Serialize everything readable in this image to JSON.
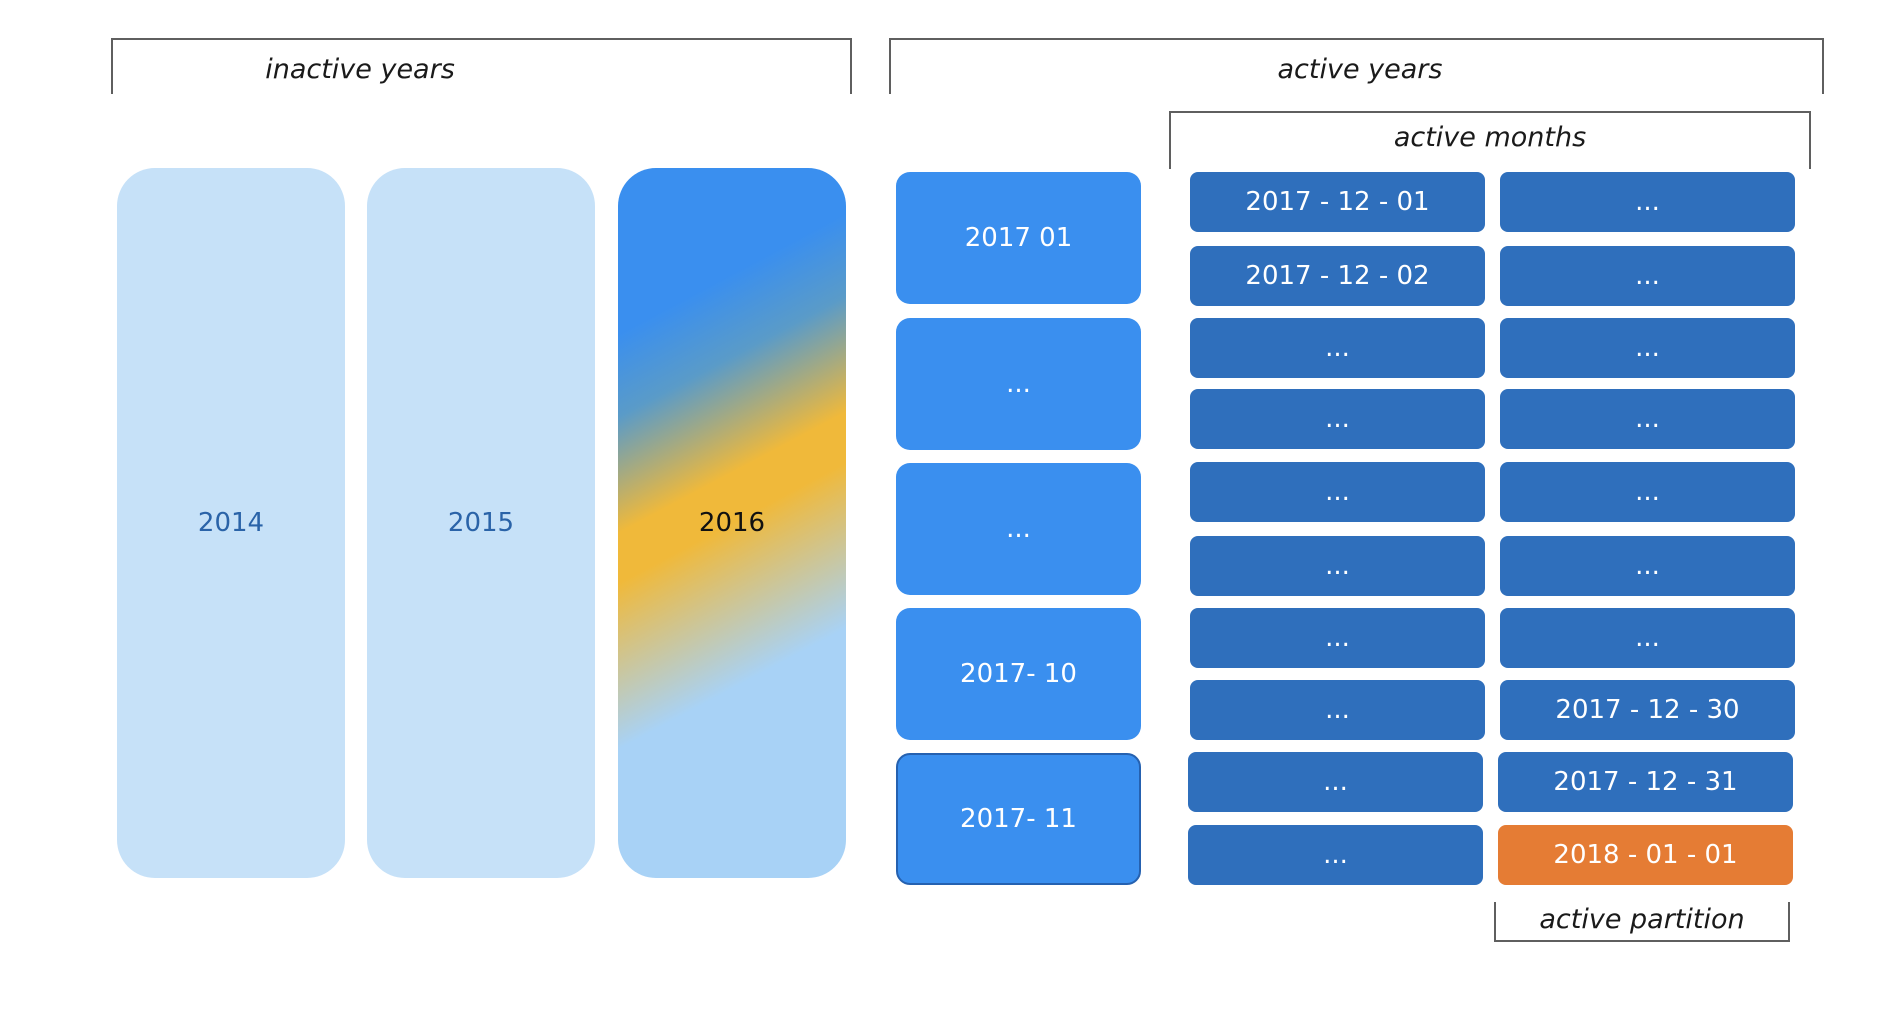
{
  "labels": {
    "inactive_years": "inactive years",
    "active_years": "active years",
    "active_months": "active months",
    "active_partition": "active partition"
  },
  "inactive_years": [
    "2014",
    "2015",
    "2016"
  ],
  "active_year_months": [
    "2017  01",
    "...",
    "...",
    "2017- 10",
    "2017- 11"
  ],
  "day_col1": [
    "2017 - 12 - 01",
    "2017 - 12 - 02",
    "...",
    "...",
    "...",
    "...",
    "...",
    "...",
    "...",
    "..."
  ],
  "day_col2": [
    "...",
    "...",
    "...",
    "...",
    "...",
    "...",
    "...",
    "2017  -  12 - 30",
    "2017  -  12 - 31",
    "2018  -  01 - 01"
  ],
  "colors": {
    "inactive_year": "#c6e1f8",
    "month": "#3a8fef",
    "day": "#2f6fbc",
    "active_partition": "#e57c34"
  }
}
